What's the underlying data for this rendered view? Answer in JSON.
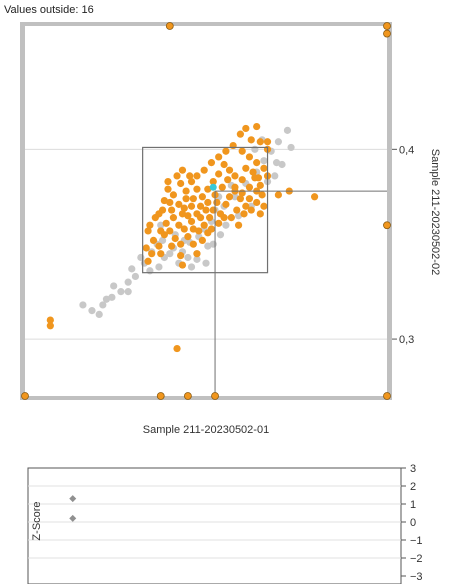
{
  "status": {
    "values_outside": "Values outside: 16"
  },
  "colors": {
    "accent": "#f0961e",
    "reference": "#c8c8c8",
    "selected": "#38c8d8",
    "frame": "#c0c0c0",
    "zdot": "#909090"
  },
  "chart_data": [
    {
      "type": "scatter",
      "title": "",
      "xlabel": "Sample 211-20230502-01",
      "ylabel": "Sample 211-20230502-02",
      "xlim": [
        0.27,
        0.47
      ],
      "ylim": [
        0.27,
        0.465
      ],
      "yticks": [
        {
          "value": 0.3,
          "label": "0,3"
        },
        {
          "value": 0.4,
          "label": "0,4"
        }
      ],
      "grid": true,
      "selection_box": {
        "x0": 0.335,
        "x1": 0.404,
        "y0": 0.335,
        "y1": 0.401
      },
      "crosshair": {
        "x": 0.375,
        "y": 0.378
      },
      "selected_point": {
        "x": 0.374,
        "y": 0.38
      },
      "series": [
        {
          "name": "",
          "role": "reference",
          "points": [
            [
              0.302,
              0.318
            ],
            [
              0.307,
              0.315
            ],
            [
              0.313,
              0.318
            ],
            [
              0.311,
              0.313
            ],
            [
              0.318,
              0.322
            ],
            [
              0.323,
              0.325
            ],
            [
              0.327,
              0.33
            ],
            [
              0.319,
              0.328
            ],
            [
              0.331,
              0.333
            ],
            [
              0.336,
              0.34
            ],
            [
              0.34,
              0.346
            ],
            [
              0.343,
              0.35
            ],
            [
              0.334,
              0.343
            ],
            [
              0.329,
              0.337
            ],
            [
              0.347,
              0.343
            ],
            [
              0.352,
              0.348
            ],
            [
              0.357,
              0.346
            ],
            [
              0.361,
              0.351
            ],
            [
              0.366,
              0.354
            ],
            [
              0.371,
              0.349
            ],
            [
              0.36,
              0.343
            ],
            [
              0.355,
              0.34
            ],
            [
              0.365,
              0.345
            ],
            [
              0.369,
              0.358
            ],
            [
              0.373,
              0.362
            ],
            [
              0.378,
              0.355
            ],
            [
              0.353,
              0.355
            ],
            [
              0.346,
              0.352
            ],
            [
              0.345,
              0.36
            ],
            [
              0.362,
              0.338
            ],
            [
              0.339,
              0.336
            ],
            [
              0.344,
              0.338
            ],
            [
              0.327,
              0.325
            ],
            [
              0.315,
              0.321
            ],
            [
              0.365,
              0.342
            ],
            [
              0.375,
              0.368
            ],
            [
              0.38,
              0.37
            ],
            [
              0.386,
              0.375
            ],
            [
              0.392,
              0.382
            ],
            [
              0.398,
              0.388
            ],
            [
              0.402,
              0.394
            ],
            [
              0.406,
              0.399
            ],
            [
              0.41,
              0.404
            ],
            [
              0.415,
              0.41
            ],
            [
              0.417,
              0.401
            ],
            [
              0.409,
              0.393
            ],
            [
              0.401,
              0.405
            ],
            [
              0.397,
              0.4
            ],
            [
              0.381,
              0.36
            ],
            [
              0.358,
              0.352
            ],
            [
              0.35,
              0.345
            ],
            [
              0.37,
              0.34
            ],
            [
              0.374,
              0.35
            ],
            [
              0.388,
              0.365
            ],
            [
              0.395,
              0.37
            ],
            [
              0.404,
              0.383
            ],
            [
              0.408,
              0.386
            ],
            [
              0.412,
              0.392
            ],
            [
              0.384,
              0.381
            ],
            [
              0.377,
              0.375
            ]
          ]
        },
        {
          "name": "",
          "role": "sample",
          "points": [
            [
              0.284,
              0.31
            ],
            [
              0.284,
              0.307
            ],
            [
              0.354,
              0.295
            ],
            [
              0.349,
              0.383
            ],
            [
              0.351,
              0.368
            ],
            [
              0.359,
              0.374
            ],
            [
              0.362,
              0.37
            ],
            [
              0.365,
              0.366
            ],
            [
              0.357,
              0.366
            ],
            [
              0.352,
              0.376
            ],
            [
              0.348,
              0.361
            ],
            [
              0.345,
              0.357
            ],
            [
              0.341,
              0.352
            ],
            [
              0.344,
              0.366
            ],
            [
              0.339,
              0.36
            ],
            [
              0.355,
              0.36
            ],
            [
              0.358,
              0.358
            ],
            [
              0.362,
              0.362
            ],
            [
              0.366,
              0.357
            ],
            [
              0.36,
              0.354
            ],
            [
              0.353,
              0.353
            ],
            [
              0.347,
              0.355
            ],
            [
              0.351,
              0.349
            ],
            [
              0.356,
              0.35
            ],
            [
              0.363,
              0.35
            ],
            [
              0.368,
              0.352
            ],
            [
              0.371,
              0.356
            ],
            [
              0.369,
              0.36
            ],
            [
              0.372,
              0.364
            ],
            [
              0.374,
              0.368
            ],
            [
              0.376,
              0.372
            ],
            [
              0.378,
              0.366
            ],
            [
              0.381,
              0.371
            ],
            [
              0.383,
              0.375
            ],
            [
              0.386,
              0.378
            ],
            [
              0.389,
              0.374
            ],
            [
              0.392,
              0.37
            ],
            [
              0.387,
              0.368
            ],
            [
              0.384,
              0.364
            ],
            [
              0.391,
              0.366
            ],
            [
              0.395,
              0.368
            ],
            [
              0.398,
              0.372
            ],
            [
              0.401,
              0.376
            ],
            [
              0.4,
              0.381
            ],
            [
              0.397,
              0.385
            ],
            [
              0.394,
              0.38
            ],
            [
              0.39,
              0.384
            ],
            [
              0.386,
              0.386
            ],
            [
              0.383,
              0.389
            ],
            [
              0.38,
              0.392
            ],
            [
              0.377,
              0.387
            ],
            [
              0.374,
              0.383
            ],
            [
              0.371,
              0.379
            ],
            [
              0.368,
              0.375
            ],
            [
              0.365,
              0.379
            ],
            [
              0.362,
              0.383
            ],
            [
              0.365,
              0.386
            ],
            [
              0.369,
              0.389
            ],
            [
              0.373,
              0.393
            ],
            [
              0.377,
              0.396
            ],
            [
              0.381,
              0.399
            ],
            [
              0.385,
              0.402
            ],
            [
              0.39,
              0.399
            ],
            [
              0.394,
              0.396
            ],
            [
              0.398,
              0.393
            ],
            [
              0.402,
              0.39
            ],
            [
              0.404,
              0.386
            ],
            [
              0.404,
              0.4
            ],
            [
              0.4,
              0.404
            ],
            [
              0.395,
              0.405
            ],
            [
              0.389,
              0.408
            ],
            [
              0.392,
              0.411
            ],
            [
              0.398,
              0.412
            ],
            [
              0.404,
              0.404
            ],
            [
              0.367,
              0.37
            ],
            [
              0.363,
              0.374
            ],
            [
              0.359,
              0.378
            ],
            [
              0.356,
              0.382
            ],
            [
              0.361,
              0.386
            ],
            [
              0.357,
              0.389
            ],
            [
              0.354,
              0.386
            ],
            [
              0.35,
              0.372
            ],
            [
              0.346,
              0.368
            ],
            [
              0.342,
              0.364
            ],
            [
              0.338,
              0.357
            ],
            [
              0.371,
              0.372
            ],
            [
              0.375,
              0.376
            ],
            [
              0.379,
              0.38
            ],
            [
              0.382,
              0.384
            ],
            [
              0.386,
              0.38
            ],
            [
              0.39,
              0.377
            ],
            [
              0.394,
              0.374
            ],
            [
              0.398,
              0.378
            ],
            [
              0.355,
              0.371
            ],
            [
              0.358,
              0.369
            ],
            [
              0.367,
              0.364
            ],
            [
              0.37,
              0.368
            ],
            [
              0.373,
              0.358
            ],
            [
              0.377,
              0.361
            ],
            [
              0.38,
              0.364
            ],
            [
              0.363,
              0.358
            ],
            [
              0.36,
              0.365
            ],
            [
              0.349,
              0.379
            ],
            [
              0.352,
              0.364
            ],
            [
              0.347,
              0.373
            ],
            [
              0.344,
              0.349
            ],
            [
              0.34,
              0.345
            ],
            [
              0.338,
              0.341
            ],
            [
              0.356,
              0.344
            ],
            [
              0.365,
              0.345
            ],
            [
              0.357,
              0.339
            ],
            [
              0.392,
              0.39
            ],
            [
              0.396,
              0.388
            ],
            [
              0.399,
              0.385
            ],
            [
              0.41,
              0.376
            ],
            [
              0.416,
              0.378
            ],
            [
              0.43,
              0.375
            ],
            [
              0.402,
              0.37
            ],
            [
              0.4,
              0.366
            ],
            [
              0.388,
              0.36
            ],
            [
              0.35,
              0.357
            ],
            [
              0.345,
              0.345
            ],
            [
              0.337,
              0.348
            ]
          ]
        },
        {
          "name": "",
          "role": "outside",
          "points": [
            [
              0.27,
              0.27
            ],
            [
              0.345,
              0.27
            ],
            [
              0.36,
              0.27
            ],
            [
              0.375,
              0.27
            ],
            [
              0.47,
              0.27
            ],
            [
              0.35,
              0.465
            ],
            [
              0.47,
              0.465
            ],
            [
              0.47,
              0.461
            ],
            [
              0.47,
              0.36
            ]
          ]
        }
      ]
    },
    {
      "type": "scatter",
      "title": "",
      "ylabel": "Z-Score",
      "ylim": [
        -3,
        3
      ],
      "yticks": [
        3,
        2,
        1,
        0,
        -1,
        -2,
        -3
      ],
      "grid": true,
      "points": [
        {
          "x": 0.12,
          "y": 1.3
        },
        {
          "x": 0.12,
          "y": 0.2
        }
      ]
    }
  ]
}
